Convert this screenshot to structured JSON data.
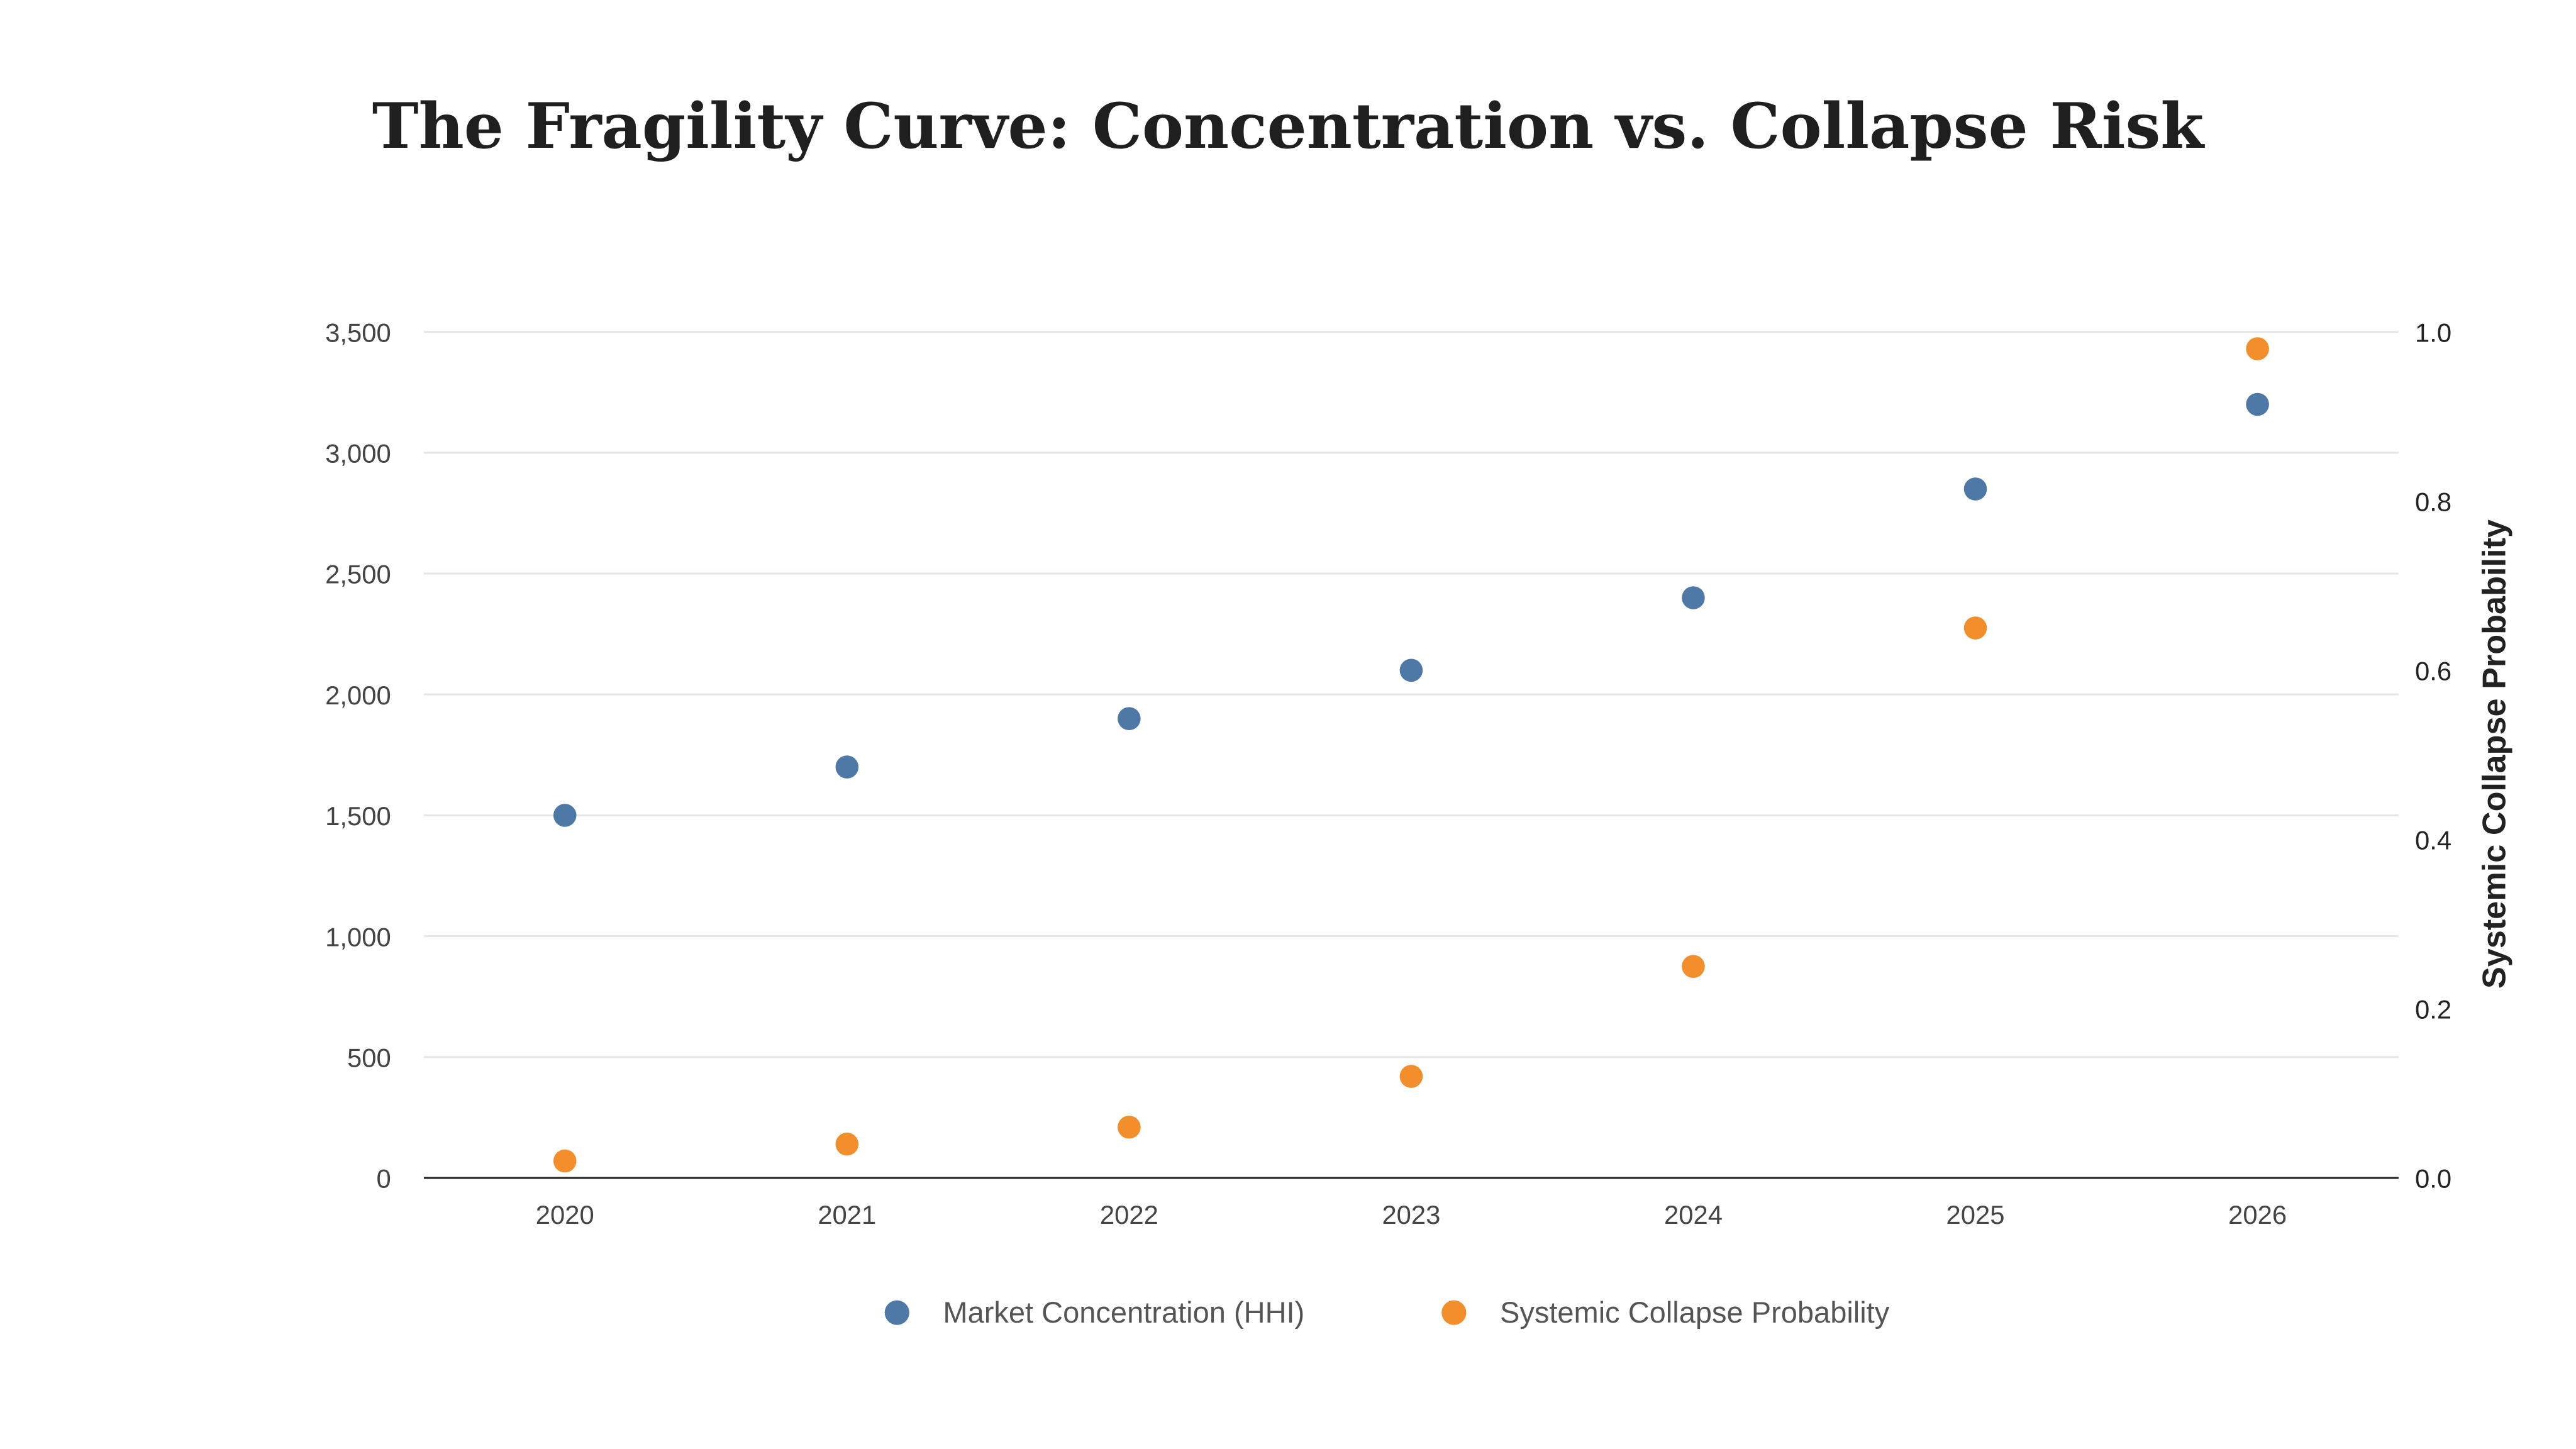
{
  "chart_data": {
    "type": "scatter",
    "title": "The Fragility Curve: Concentration vs. Collapse Risk",
    "categories": [
      "2020",
      "2021",
      "2022",
      "2023",
      "2024",
      "2025",
      "2026"
    ],
    "xlabel": "",
    "ylabel": "",
    "y2label": "Systemic Collapse Probability",
    "ylim": [
      0,
      3500
    ],
    "y2lim": [
      0,
      1.0
    ],
    "yticks": [
      "0",
      "500",
      "1,000",
      "1,500",
      "2,000",
      "2,500",
      "3,000",
      "3,500"
    ],
    "y2ticks": [
      "0.0",
      "0.2",
      "0.4",
      "0.6",
      "0.8",
      "1.0"
    ],
    "grid": true,
    "legend_position": "bottom",
    "series": [
      {
        "name": "Market Concentration (HHI)",
        "axis": "left",
        "color": "#4e79a7",
        "values": [
          1500,
          1700,
          1900,
          2100,
          2400,
          2850,
          3200
        ]
      },
      {
        "name": "Systemic Collapse Probability",
        "axis": "right",
        "color": "#f28e2b",
        "values": [
          0.02,
          0.04,
          0.06,
          0.12,
          0.25,
          0.65,
          0.98
        ]
      }
    ]
  }
}
